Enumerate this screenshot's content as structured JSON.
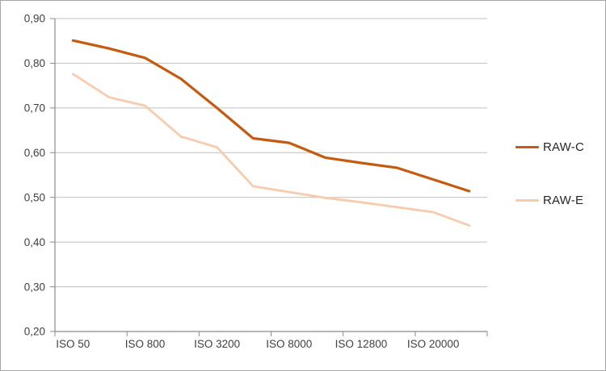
{
  "chart_data": {
    "type": "line",
    "title": "",
    "xlabel": "",
    "ylabel": "",
    "x_tick_labels": [
      "ISO 50",
      "ISO 800",
      "ISO 3200",
      "ISO 8000",
      "ISO 12800",
      "ISO 20000"
    ],
    "label_point_indices": [
      0,
      2,
      4,
      6,
      8,
      10
    ],
    "points_per_series": 12,
    "ylim": [
      0.2,
      0.9
    ],
    "y_ticks": [
      {
        "label": "0,90",
        "value": 0.9
      },
      {
        "label": "0,80",
        "value": 0.8
      },
      {
        "label": "0,70",
        "value": 0.7
      },
      {
        "label": "0,60",
        "value": 0.6
      },
      {
        "label": "0,50",
        "value": 0.5
      },
      {
        "label": "0,40",
        "value": 0.4
      },
      {
        "label": "0,30",
        "value": 0.3
      },
      {
        "label": "0,20",
        "value": 0.2
      }
    ],
    "grid": true,
    "legend_position": "right",
    "series": [
      {
        "name": "RAW-C",
        "color": "#C55A11",
        "stroke_width": 3.2,
        "values": [
          0.851,
          0.833,
          0.812,
          0.765,
          0.7,
          0.632,
          0.622,
          0.589,
          0.577,
          0.566,
          0.54,
          0.514
        ]
      },
      {
        "name": "RAW-E",
        "color": "#F8CBAD",
        "stroke_width": 2.8,
        "values": [
          0.776,
          0.724,
          0.705,
          0.636,
          0.612,
          0.525,
          0.512,
          0.499,
          0.489,
          0.478,
          0.467,
          0.437
        ]
      }
    ]
  },
  "colors": {
    "background": "#FFFFFF",
    "border": "#A6A6A6",
    "gridline": "#BFBFBF",
    "axis": "#8C8C8C",
    "axis_text": "#404040",
    "legend_text": "#262626"
  }
}
